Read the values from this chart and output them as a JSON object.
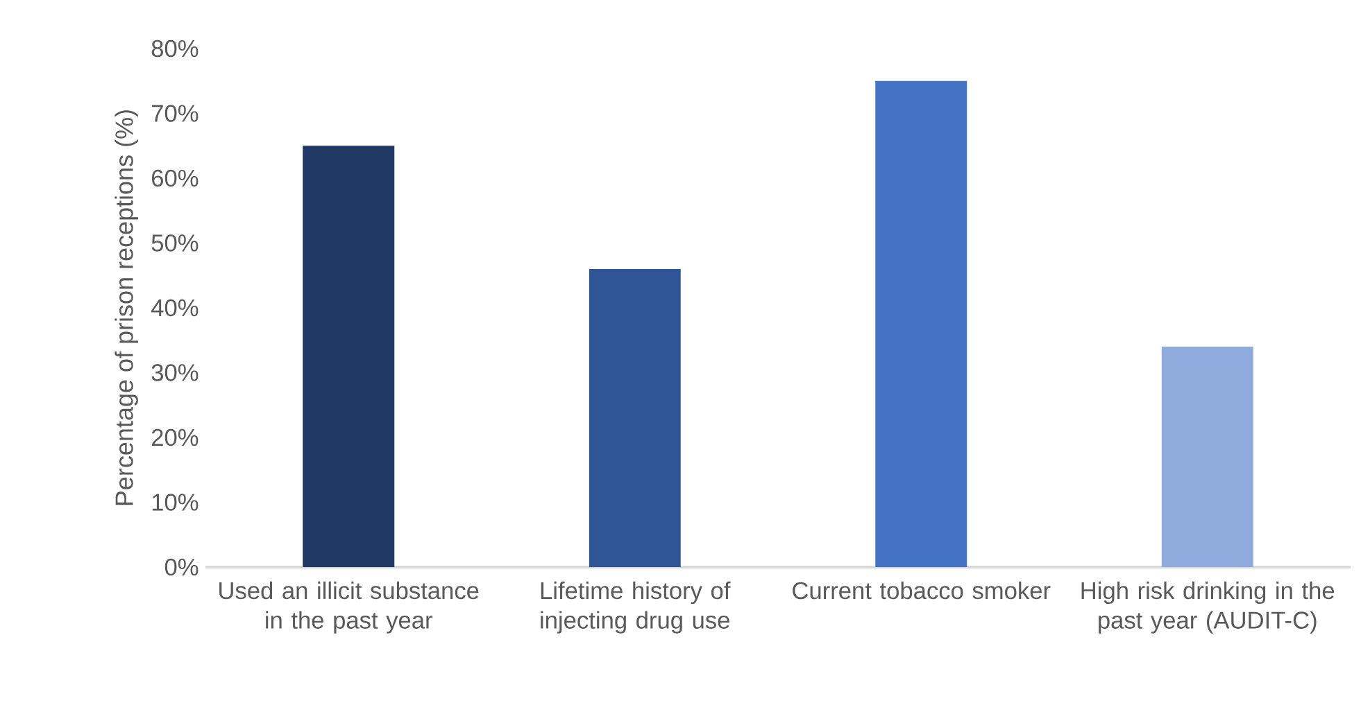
{
  "chart_data": {
    "type": "bar",
    "ylabel": "Percentage of prison receptions (%)",
    "categories": [
      "Used an illicit substance in the past year",
      "Lifetime history of injecting drug use",
      "Current tobacco smoker",
      "High risk drinking in the past year (AUDIT-C)"
    ],
    "values": [
      65,
      46,
      75,
      34
    ],
    "colors": [
      "#203864",
      "#2f5597",
      "#4472c4",
      "#8faadc"
    ],
    "ylim": [
      0,
      80
    ],
    "yticks": [
      {
        "value": 0,
        "label": "0%"
      },
      {
        "value": 10,
        "label": "10%"
      },
      {
        "value": 20,
        "label": "20%"
      },
      {
        "value": 30,
        "label": "30%"
      },
      {
        "value": 40,
        "label": "40%"
      },
      {
        "value": 50,
        "label": "50%"
      },
      {
        "value": 60,
        "label": "60%"
      },
      {
        "value": 70,
        "label": "70%"
      },
      {
        "value": 80,
        "label": "80%"
      }
    ],
    "grid": false
  }
}
